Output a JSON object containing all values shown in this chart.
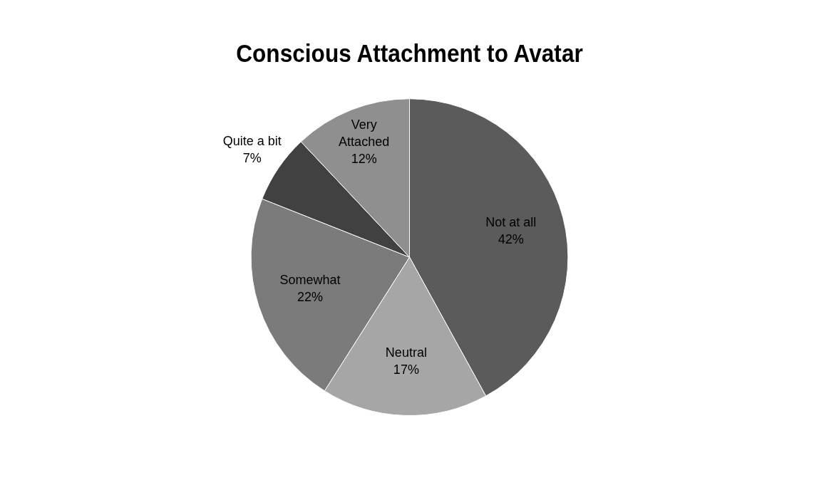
{
  "chart_data": {
    "type": "pie",
    "title": "Conscious Attachment to Avatar",
    "categories": [
      "Not at all",
      "Neutral",
      "Somewhat",
      "Quite a bit",
      "Very Attached"
    ],
    "values": [
      42,
      17,
      22,
      7,
      12
    ],
    "colors": [
      "#5b5b5b",
      "#a6a6a6",
      "#7b7b7b",
      "#414141",
      "#8f8f8f"
    ],
    "value_labels": [
      "42%",
      "17%",
      "22%",
      "7%",
      "12%"
    ],
    "legend": false
  }
}
